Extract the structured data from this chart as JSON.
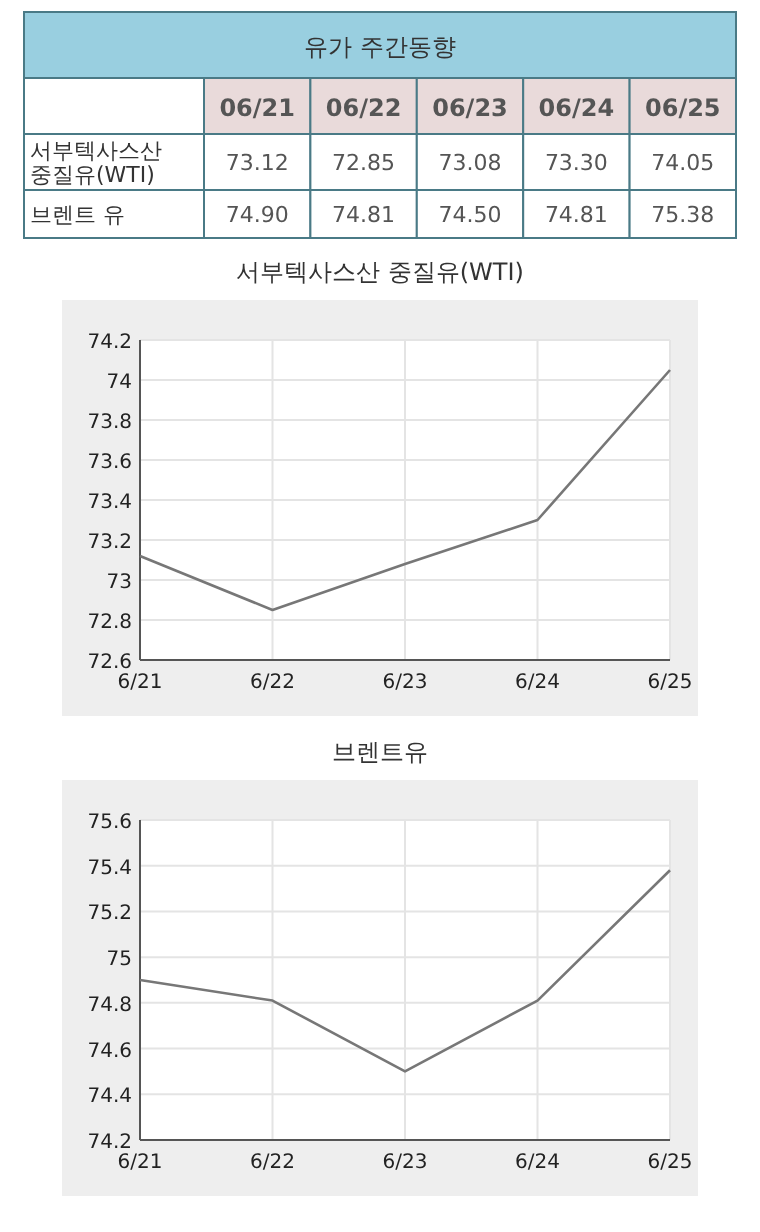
{
  "chart_data": [
    {
      "type": "other",
      "title": "유가 주간동향",
      "categories": [
        "06/21",
        "06/22",
        "06/23",
        "06/24",
        "06/25"
      ],
      "annotations": [
        "서부텍사스산 중질유(WTI)",
        "브렌트 유"
      ]
    },
    {
      "type": "line",
      "title": "서부텍사스산 중질유(WTI)",
      "categories": [
        "6/21",
        "6/22",
        "6/23",
        "6/24",
        "6/25"
      ],
      "values": [
        73.12,
        72.85,
        73.08,
        73.3,
        74.05
      ],
      "value_labels": [
        "73.12",
        "72.85",
        "73.08",
        "73.30",
        "74.05"
      ],
      "color": "#777777",
      "ylim": [
        72.6,
        74.2
      ],
      "yticks": [
        72.6,
        72.8,
        73,
        73.2,
        73.4,
        73.6,
        73.8,
        74,
        74.2
      ],
      "grid": true,
      "marker": "none"
    },
    {
      "type": "line",
      "title": "브렌트유",
      "categories": [
        "6/21",
        "6/22",
        "6/23",
        "6/24",
        "6/25"
      ],
      "values": [
        74.9,
        74.81,
        74.5,
        74.81,
        75.38
      ],
      "value_labels": [
        "74.90",
        "74.81",
        "74.50",
        "74.81",
        "75.38"
      ],
      "color": "#777777",
      "ylim": [
        74.2,
        75.6
      ],
      "yticks": [
        74.2,
        74.4,
        74.6,
        74.8,
        75,
        75.2,
        75.4,
        75.6
      ],
      "grid": true,
      "marker": "none"
    }
  ]
}
